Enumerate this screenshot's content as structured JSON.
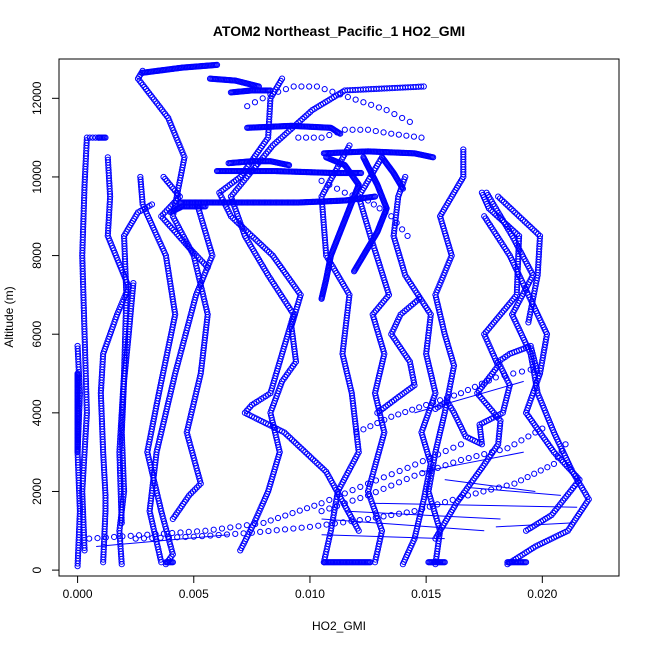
{
  "chart_data": {
    "type": "scatter",
    "title": "ATOM2 Northeast_Pacific_1 HO2_GMI",
    "xlabel": "HO2_GMI",
    "ylabel": "Altitude (m)",
    "xlim": [
      -0.0008,
      0.0233
    ],
    "ylim": [
      -150,
      13000
    ],
    "xticks": [
      0.0,
      0.005,
      0.01,
      0.015,
      0.02
    ],
    "xtick_labels": [
      "0.000",
      "0.005",
      "0.010",
      "0.015",
      "0.020"
    ],
    "yticks": [
      0,
      2000,
      4000,
      6000,
      8000,
      10000,
      12000
    ],
    "ytick_labels": [
      "0",
      "2000",
      "4000",
      "6000",
      "8000",
      "10000",
      "12000"
    ],
    "marker": "open-circle",
    "color": "#0000ff",
    "grid": false,
    "legend": "none",
    "profiles": [
      [
        [
          0.0,
          100
        ],
        [
          0.0001,
          1500
        ],
        [
          0.0,
          3000
        ],
        [
          0.0001,
          4500
        ],
        [
          0.0,
          5700
        ]
      ],
      [
        [
          0.0003,
          500
        ],
        [
          0.0002,
          2000
        ],
        [
          0.0004,
          4000
        ],
        [
          0.0003,
          6000
        ],
        [
          0.0002,
          8000
        ],
        [
          0.0003,
          9800
        ],
        [
          0.0004,
          11000
        ],
        [
          0.0009,
          11000
        ]
      ],
      [
        [
          0.0011,
          200
        ],
        [
          0.0012,
          1500
        ],
        [
          0.0012,
          1900
        ],
        [
          0.0011,
          3000
        ],
        [
          0.001,
          4500
        ],
        [
          0.0011,
          5500
        ],
        [
          0.0017,
          6500
        ],
        [
          0.0022,
          7200
        ],
        [
          0.0013,
          8500
        ],
        [
          0.0014,
          9500
        ],
        [
          0.0013,
          10500
        ]
      ],
      [
        [
          0.0019,
          150
        ],
        [
          0.0018,
          1000
        ],
        [
          0.002,
          2000
        ],
        [
          0.0019,
          3500
        ],
        [
          0.002,
          4800
        ],
        [
          0.0022,
          6000
        ],
        [
          0.0024,
          7300
        ]
      ],
      [
        [
          0.0019,
          1200
        ],
        [
          0.0018,
          3000
        ],
        [
          0.002,
          5000
        ],
        [
          0.0021,
          7000
        ],
        [
          0.002,
          8500
        ],
        [
          0.0026,
          9100
        ],
        [
          0.0032,
          9300
        ]
      ],
      [
        [
          0.0038,
          150
        ],
        [
          0.0041,
          400
        ],
        [
          0.0036,
          1500
        ],
        [
          0.003,
          3000
        ],
        [
          0.0035,
          4500
        ],
        [
          0.0042,
          6500
        ],
        [
          0.0038,
          8000
        ],
        [
          0.0028,
          9300
        ],
        [
          0.0027,
          10000
        ]
      ],
      [
        [
          0.0041,
          1300
        ],
        [
          0.0048,
          1900
        ],
        [
          0.0053,
          2200
        ],
        [
          0.0047,
          3500
        ],
        [
          0.0053,
          5000
        ],
        [
          0.0056,
          6500
        ],
        [
          0.005,
          8000
        ],
        [
          0.0041,
          9000
        ],
        [
          0.0046,
          10500
        ],
        [
          0.0039,
          11500
        ],
        [
          0.0026,
          12500
        ],
        [
          0.0028,
          12700
        ]
      ],
      [
        [
          0.0036,
          200
        ],
        [
          0.0031,
          1500
        ],
        [
          0.0034,
          3000
        ],
        [
          0.0042,
          5000
        ],
        [
          0.0051,
          7000
        ],
        [
          0.0058,
          8000
        ],
        [
          0.0052,
          9200
        ]
      ],
      [
        [
          0.0056,
          7700
        ],
        [
          0.0048,
          8200
        ],
        [
          0.0036,
          9000
        ],
        [
          0.0044,
          9500
        ],
        [
          0.0037,
          10000
        ]
      ],
      [
        [
          0.007,
          500
        ],
        [
          0.0076,
          1200
        ],
        [
          0.0082,
          2000
        ],
        [
          0.0087,
          3000
        ],
        [
          0.0083,
          4000
        ],
        [
          0.0088,
          4800
        ],
        [
          0.0094,
          5300
        ],
        [
          0.0092,
          6200
        ],
        [
          0.0096,
          7000
        ],
        [
          0.0084,
          8000
        ],
        [
          0.0066,
          9000
        ],
        [
          0.0061,
          9600
        ],
        [
          0.007,
          10000
        ],
        [
          0.0082,
          11000
        ],
        [
          0.0083,
          12000
        ],
        [
          0.0088,
          12500
        ]
      ],
      [
        [
          0.0121,
          1000
        ],
        [
          0.0107,
          2500
        ],
        [
          0.0089,
          3500
        ],
        [
          0.0072,
          4000
        ],
        [
          0.0075,
          4200
        ],
        [
          0.0083,
          4500
        ],
        [
          0.0088,
          5500
        ],
        [
          0.0093,
          6500
        ],
        [
          0.0082,
          7500
        ],
        [
          0.0072,
          8500
        ],
        [
          0.0066,
          9500
        ],
        [
          0.0084,
          10800
        ],
        [
          0.0101,
          11700
        ],
        [
          0.0115,
          12200
        ],
        [
          0.0149,
          12300
        ]
      ],
      [
        [
          0.0106,
          200
        ],
        [
          0.0109,
          1000
        ],
        [
          0.0112,
          2000
        ],
        [
          0.0121,
          3000
        ],
        [
          0.0118,
          4500
        ],
        [
          0.0114,
          5500
        ],
        [
          0.0117,
          7000
        ],
        [
          0.0107,
          8000
        ],
        [
          0.0105,
          9500
        ],
        [
          0.0117,
          10800
        ]
      ],
      [
        [
          0.0128,
          200
        ],
        [
          0.0131,
          1000
        ],
        [
          0.0125,
          2000
        ],
        [
          0.0132,
          3500
        ],
        [
          0.0128,
          4500
        ],
        [
          0.0132,
          5500
        ],
        [
          0.0127,
          6500
        ],
        [
          0.0134,
          7000
        ],
        [
          0.0126,
          8500
        ],
        [
          0.0121,
          9500
        ],
        [
          0.0131,
          10500
        ]
      ],
      [
        [
          0.014,
          150
        ],
        [
          0.0145,
          800
        ],
        [
          0.0149,
          1800
        ],
        [
          0.0152,
          2700
        ],
        [
          0.0148,
          3500
        ],
        [
          0.0154,
          4500
        ],
        [
          0.015,
          5500
        ],
        [
          0.0152,
          6500
        ],
        [
          0.0141,
          7500
        ],
        [
          0.0136,
          8500
        ],
        [
          0.0138,
          9500
        ],
        [
          0.0141,
          10000
        ]
      ],
      [
        [
          0.0154,
          150
        ],
        [
          0.0156,
          1000
        ],
        [
          0.0151,
          2000
        ],
        [
          0.0154,
          3000
        ],
        [
          0.0158,
          4000
        ],
        [
          0.0162,
          5200
        ],
        [
          0.0158,
          6000
        ],
        [
          0.0154,
          7000
        ],
        [
          0.0161,
          8000
        ],
        [
          0.0156,
          9000
        ],
        [
          0.0166,
          10000
        ],
        [
          0.0166,
          10700
        ]
      ],
      [
        [
          0.0154,
          800
        ],
        [
          0.0163,
          1700
        ],
        [
          0.0174,
          2600
        ],
        [
          0.0181,
          3200
        ],
        [
          0.0182,
          3800
        ],
        [
          0.0172,
          4500
        ],
        [
          0.0181,
          5200
        ],
        [
          0.0175,
          6000
        ],
        [
          0.0189,
          7000
        ],
        [
          0.019,
          8500
        ],
        [
          0.0177,
          9200
        ],
        [
          0.0174,
          9600
        ]
      ],
      [
        [
          0.0185,
          150
        ],
        [
          0.0197,
          600
        ],
        [
          0.0211,
          1000
        ],
        [
          0.022,
          1800
        ],
        [
          0.0213,
          2500
        ],
        [
          0.0205,
          3500
        ],
        [
          0.0198,
          4500
        ],
        [
          0.0195,
          5500
        ],
        [
          0.0187,
          6500
        ],
        [
          0.0196,
          7500
        ],
        [
          0.0187,
          8500
        ],
        [
          0.0176,
          9600
        ]
      ],
      [
        [
          0.0193,
          1000
        ],
        [
          0.0204,
          1400
        ],
        [
          0.0216,
          2300
        ],
        [
          0.0205,
          3000
        ],
        [
          0.0193,
          4000
        ],
        [
          0.0199,
          5000
        ],
        [
          0.0202,
          6000
        ],
        [
          0.0194,
          7000
        ],
        [
          0.0186,
          8000
        ],
        [
          0.0175,
          9000
        ]
      ],
      [
        [
          0.0194,
          6300
        ],
        [
          0.0198,
          7500
        ],
        [
          0.0199,
          8500
        ],
        [
          0.0181,
          9500
        ]
      ],
      [
        [
          0.0129,
          4000
        ],
        [
          0.0138,
          4400
        ],
        [
          0.0145,
          4700
        ],
        [
          0.0143,
          5300
        ],
        [
          0.0135,
          6000
        ],
        [
          0.0139,
          6500
        ],
        [
          0.0147,
          6900
        ]
      ],
      [
        [
          0.0154,
          4100
        ],
        [
          0.0159,
          4300
        ],
        [
          0.0162,
          4000
        ],
        [
          0.0167,
          3400
        ],
        [
          0.0174,
          3200
        ],
        [
          0.0173,
          3700
        ],
        [
          0.0183,
          4000
        ],
        [
          0.0186,
          4700
        ],
        [
          0.0181,
          5300
        ],
        [
          0.0186,
          5500
        ],
        [
          0.0195,
          5700
        ],
        [
          0.0198,
          5000
        ]
      ]
    ],
    "sparse_profiles": [
      [
        [
          0.0005,
          800
        ],
        [
          0.003,
          900
        ],
        [
          0.0055,
          1000
        ],
        [
          0.008,
          1200
        ],
        [
          0.0105,
          1700
        ],
        [
          0.0125,
          2200
        ],
        [
          0.0142,
          2600
        ],
        [
          0.0165,
          3200
        ]
      ],
      [
        [
          0.0025,
          800
        ],
        [
          0.005,
          850
        ],
        [
          0.0075,
          950
        ],
        [
          0.01,
          1100
        ],
        [
          0.0125,
          1300
        ],
        [
          0.0145,
          1500
        ],
        [
          0.0168,
          1900
        ],
        [
          0.0188,
          2200
        ],
        [
          0.0205,
          2700
        ],
        [
          0.021,
          3200
        ]
      ],
      [
        [
          0.0105,
          1500
        ],
        [
          0.0125,
          1900
        ],
        [
          0.0145,
          2400
        ],
        [
          0.0165,
          2800
        ],
        [
          0.0185,
          3100
        ],
        [
          0.02,
          3600
        ]
      ],
      [
        [
          0.012,
          3500
        ],
        [
          0.0135,
          3900
        ],
        [
          0.015,
          4200
        ],
        [
          0.0165,
          4500
        ],
        [
          0.018,
          4900
        ],
        [
          0.0195,
          5100
        ]
      ],
      [
        [
          0.0073,
          11800
        ],
        [
          0.0083,
          12100
        ],
        [
          0.0093,
          12300
        ],
        [
          0.0103,
          12300
        ],
        [
          0.0113,
          12100
        ],
        [
          0.0123,
          11900
        ],
        [
          0.0133,
          11700
        ],
        [
          0.0143,
          11400
        ]
      ],
      [
        [
          0.0095,
          11000
        ],
        [
          0.0105,
          11000
        ],
        [
          0.0115,
          11200
        ],
        [
          0.0125,
          11200
        ],
        [
          0.0135,
          11100
        ],
        [
          0.0148,
          11000
        ]
      ],
      [
        [
          0.0105,
          9900
        ],
        [
          0.0115,
          9600
        ],
        [
          0.0125,
          9400
        ],
        [
          0.0135,
          9000
        ],
        [
          0.0142,
          8500
        ]
      ]
    ],
    "bands": [
      [
        [
          0.0028,
          12650
        ],
        [
          0.0045,
          12780
        ],
        [
          0.006,
          12850
        ]
      ],
      [
        [
          0.0057,
          12500
        ],
        [
          0.0068,
          12450
        ],
        [
          0.0078,
          12300
        ]
      ],
      [
        [
          0.0066,
          12150
        ],
        [
          0.0075,
          12200
        ],
        [
          0.0083,
          12200
        ]
      ],
      [
        [
          0.0073,
          11250
        ],
        [
          0.0092,
          11300
        ],
        [
          0.0109,
          11250
        ],
        [
          0.0113,
          11100
        ]
      ],
      [
        [
          0.0106,
          10600
        ],
        [
          0.0125,
          10650
        ],
        [
          0.0145,
          10600
        ],
        [
          0.0153,
          10500
        ]
      ],
      [
        [
          0.0065,
          10350
        ],
        [
          0.0075,
          10400
        ],
        [
          0.0083,
          10400
        ],
        [
          0.0091,
          10300
        ]
      ],
      [
        [
          0.006,
          10150
        ],
        [
          0.0085,
          10150
        ],
        [
          0.011,
          10100
        ],
        [
          0.0122,
          10100
        ]
      ],
      [
        [
          0.0044,
          9350
        ],
        [
          0.007,
          9350
        ],
        [
          0.0095,
          9350
        ],
        [
          0.0115,
          9400
        ],
        [
          0.0128,
          9500
        ]
      ],
      [
        [
          0.004,
          9100
        ],
        [
          0.0045,
          9250
        ],
        [
          0.0055,
          9250
        ]
      ],
      [
        [
          0.0107,
          10500
        ],
        [
          0.0115,
          10300
        ],
        [
          0.0121,
          9800
        ],
        [
          0.0117,
          9200
        ],
        [
          0.0113,
          8600
        ],
        [
          0.0109,
          8000
        ],
        [
          0.0107,
          7400
        ],
        [
          0.0105,
          6900
        ]
      ],
      [
        [
          0.0123,
          10500
        ],
        [
          0.0129,
          9800
        ],
        [
          0.0133,
          9200
        ],
        [
          0.0129,
          8600
        ],
        [
          0.0123,
          8000
        ],
        [
          0.0119,
          7600
        ]
      ],
      [
        [
          0.0131,
          10500
        ],
        [
          0.0136,
          10100
        ],
        [
          0.014,
          9700
        ]
      ],
      [
        [
          0.0009,
          11000
        ],
        [
          0.0012,
          11000
        ]
      ],
      [
        [
          0.0,
          3000
        ],
        [
          0.0,
          3600
        ],
        [
          0.0,
          4400
        ],
        [
          0.0,
          5000
        ]
      ]
    ],
    "bottom_runs": [
      [
        [
          0.0106,
          200
        ],
        [
          0.0126,
          200
        ]
      ],
      [
        [
          0.0185,
          200
        ],
        [
          0.0193,
          200
        ]
      ],
      [
        [
          0.0038,
          200
        ],
        [
          0.0041,
          200
        ]
      ],
      [
        [
          0.0151,
          200
        ],
        [
          0.0158,
          200
        ]
      ]
    ],
    "lines": [
      [
        [
          0.0008,
          600
        ],
        [
          0.0065,
          900
        ]
      ],
      [
        [
          0.0145,
          4000
        ],
        [
          0.0192,
          4800
        ]
      ],
      [
        [
          0.0148,
          2500
        ],
        [
          0.0192,
          3000
        ]
      ],
      [
        [
          0.0158,
          2300
        ],
        [
          0.0197,
          2000
        ]
      ],
      [
        [
          0.0168,
          2100
        ],
        [
          0.0208,
          1900
        ]
      ],
      [
        [
          0.0115,
          1500
        ],
        [
          0.0182,
          1300
        ]
      ],
      [
        [
          0.0105,
          1300
        ],
        [
          0.0175,
          1000
        ]
      ],
      [
        [
          0.0127,
          1700
        ],
        [
          0.0215,
          1600
        ]
      ],
      [
        [
          0.0105,
          900
        ],
        [
          0.0158,
          800
        ]
      ],
      [
        [
          0.018,
          1100
        ],
        [
          0.0213,
          1200
        ]
      ]
    ]
  }
}
